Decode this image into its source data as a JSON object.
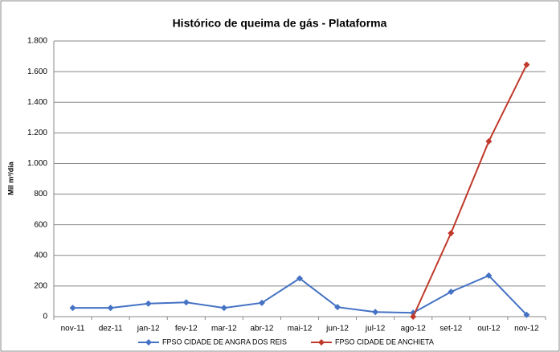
{
  "chart_data": {
    "type": "line",
    "title": "Histórico de queima de gás - Plataforma",
    "y_label": "Mil m³/dia",
    "categories": [
      "nov-11",
      "dez-11",
      "jan-12",
      "fev-12",
      "mar-12",
      "abr-12",
      "mai-12",
      "jun-12",
      "jul-12",
      "ago-12",
      "set-12",
      "out-12",
      "nov-12"
    ],
    "series": [
      {
        "name": "FPSO CIDADE DE ANGRA DOS REIS",
        "color": "#4472c4",
        "values": [
          57,
          57,
          85,
          93,
          57,
          90,
          250,
          62,
          30,
          25,
          162,
          268,
          12
        ]
      },
      {
        "name": "FPSO CIDADE DE ANCHIETA",
        "color": "#c0392b",
        "values": [
          null,
          null,
          null,
          null,
          null,
          null,
          null,
          null,
          null,
          0,
          545,
          1145,
          1645
        ]
      }
    ],
    "ylim": [
      0,
      1800
    ],
    "yticks": [
      0,
      200,
      400,
      600,
      800,
      {
        "value": 1000,
        "label": "1.000"
      },
      {
        "value": 1200,
        "label": "1.200"
      },
      {
        "value": 1400,
        "label": "1.400"
      },
      {
        "value": 1600,
        "label": "1.600"
      },
      {
        "value": 1800,
        "label": "1.800"
      }
    ],
    "grid": true,
    "legend": "bottom"
  }
}
